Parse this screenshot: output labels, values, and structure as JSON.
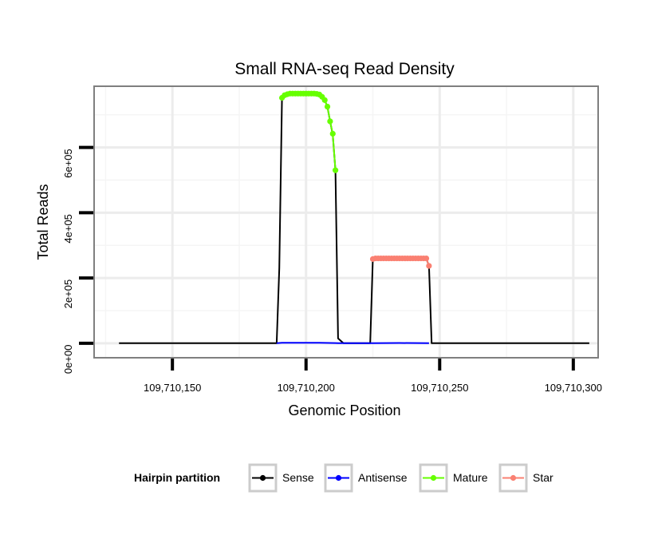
{
  "chart_data": {
    "type": "line",
    "title": "Small RNA-seq Read Density",
    "xlabel": "Genomic Position",
    "ylabel": "Total Reads",
    "xlim": [
      109710121,
      109710309
    ],
    "ylim": [
      -42000,
      785000
    ],
    "x_ticks": [
      109710150,
      109710200,
      109710250,
      109710300
    ],
    "x_tick_labels": [
      "109,710,150",
      "109,710,200",
      "109,710,250",
      "109,710,300"
    ],
    "y_ticks": [
      0,
      200000,
      400000,
      600000
    ],
    "y_tick_labels": [
      "0e+00",
      "2e+05",
      "4e+05",
      "6e+05"
    ],
    "legend": {
      "title": "Hairpin partition",
      "position": "bottom",
      "items": [
        {
          "name": "Sense",
          "color": "#000000"
        },
        {
          "name": "Antisense",
          "color": "#0000ff"
        },
        {
          "name": "Mature",
          "color": "#66ff00"
        },
        {
          "name": "Star",
          "color": "#fa8072"
        }
      ]
    },
    "series": [
      {
        "name": "Sense",
        "color": "#000000",
        "points": [
          [
            109710130,
            0
          ],
          [
            109710189,
            0
          ],
          [
            109710190,
            230000
          ],
          [
            109710191,
            755000
          ],
          [
            109710192,
            765000
          ],
          [
            109710200,
            765000
          ],
          [
            109710205,
            762000
          ],
          [
            109710206,
            755000
          ],
          [
            109710207,
            745000
          ],
          [
            109710208,
            725000
          ],
          [
            109710209,
            680000
          ],
          [
            109710210,
            640000
          ],
          [
            109710211,
            530000
          ],
          [
            109710212,
            15000
          ],
          [
            109710214,
            0
          ],
          [
            109710224,
            0
          ],
          [
            109710225,
            260000
          ],
          [
            109710226,
            262000
          ],
          [
            109710245,
            260000
          ],
          [
            109710246,
            237000
          ],
          [
            109710247,
            0
          ],
          [
            109710306,
            0
          ]
        ]
      },
      {
        "name": "Antisense",
        "color": "#0000ff",
        "points": [
          [
            109710189,
            0
          ],
          [
            109710191,
            1500
          ],
          [
            109710205,
            1500
          ],
          [
            109710211,
            500
          ],
          [
            109710212,
            0
          ],
          [
            109710225,
            0
          ],
          [
            109710235,
            800
          ],
          [
            109710246,
            0
          ]
        ]
      },
      {
        "name": "Mature",
        "color": "#66ff00",
        "points": [
          [
            109710191,
            752000
          ],
          [
            109710192,
            760000
          ],
          [
            109710193,
            763000
          ],
          [
            109710194,
            765000
          ],
          [
            109710195,
            765000
          ],
          [
            109710196,
            765000
          ],
          [
            109710197,
            765000
          ],
          [
            109710198,
            765000
          ],
          [
            109710199,
            765000
          ],
          [
            109710200,
            765000
          ],
          [
            109710201,
            765000
          ],
          [
            109710202,
            765000
          ],
          [
            109710203,
            765000
          ],
          [
            109710204,
            764000
          ],
          [
            109710205,
            762000
          ],
          [
            109710206,
            755000
          ],
          [
            109710207,
            745000
          ],
          [
            109710208,
            725000
          ],
          [
            109710209,
            680000
          ],
          [
            109710210,
            642000
          ],
          [
            109710211,
            530000
          ]
        ]
      },
      {
        "name": "Star",
        "color": "#fa8072",
        "points": [
          [
            109710225,
            258000
          ],
          [
            109710226,
            260000
          ],
          [
            109710227,
            260000
          ],
          [
            109710228,
            260000
          ],
          [
            109710229,
            260000
          ],
          [
            109710230,
            260000
          ],
          [
            109710231,
            260000
          ],
          [
            109710232,
            260000
          ],
          [
            109710233,
            260000
          ],
          [
            109710234,
            260000
          ],
          [
            109710235,
            260000
          ],
          [
            109710236,
            260000
          ],
          [
            109710237,
            260000
          ],
          [
            109710238,
            260000
          ],
          [
            109710239,
            260000
          ],
          [
            109710240,
            260000
          ],
          [
            109710241,
            260000
          ],
          [
            109710242,
            260000
          ],
          [
            109710243,
            260000
          ],
          [
            109710244,
            260000
          ],
          [
            109710245,
            260000
          ],
          [
            109710246,
            237000
          ]
        ]
      }
    ]
  }
}
